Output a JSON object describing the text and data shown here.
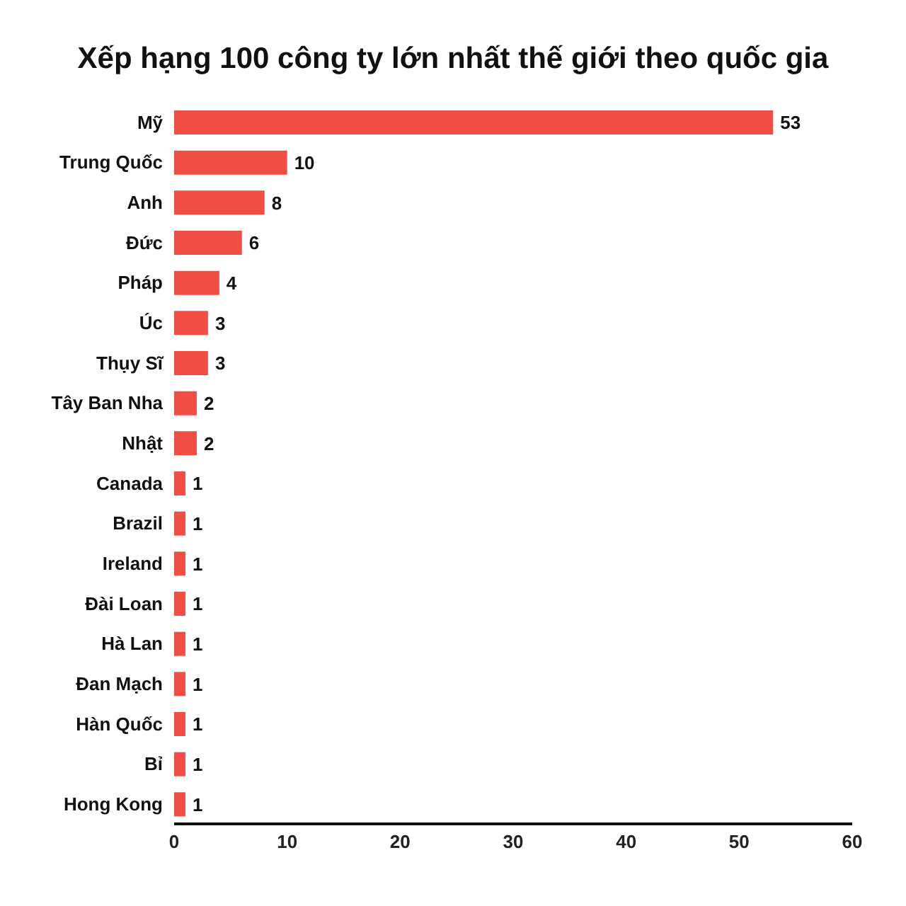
{
  "chart_data": {
    "type": "bar",
    "orientation": "horizontal",
    "title": "Xếp hạng 100 công ty lớn nhất thế giới theo quốc gia",
    "categories": [
      "Mỹ",
      "Trung Quốc",
      "Anh",
      "Đức",
      "Pháp",
      "Úc",
      "Thụy Sĩ",
      "Tây Ban Nha",
      "Nhật",
      "Canada",
      "Brazil",
      "Ireland",
      "Đài Loan",
      "Hà Lan",
      "Đan Mạch",
      "Hàn Quốc",
      "Bỉ",
      "Hong Kong"
    ],
    "values": [
      53,
      10,
      8,
      6,
      4,
      3,
      3,
      2,
      2,
      1,
      1,
      1,
      1,
      1,
      1,
      1,
      1,
      1
    ],
    "color": "#f04e45",
    "xlim": [
      0,
      60
    ],
    "xticks": [
      0,
      10,
      20,
      30,
      40,
      50,
      60
    ],
    "data_labels": true,
    "grid": false
  }
}
